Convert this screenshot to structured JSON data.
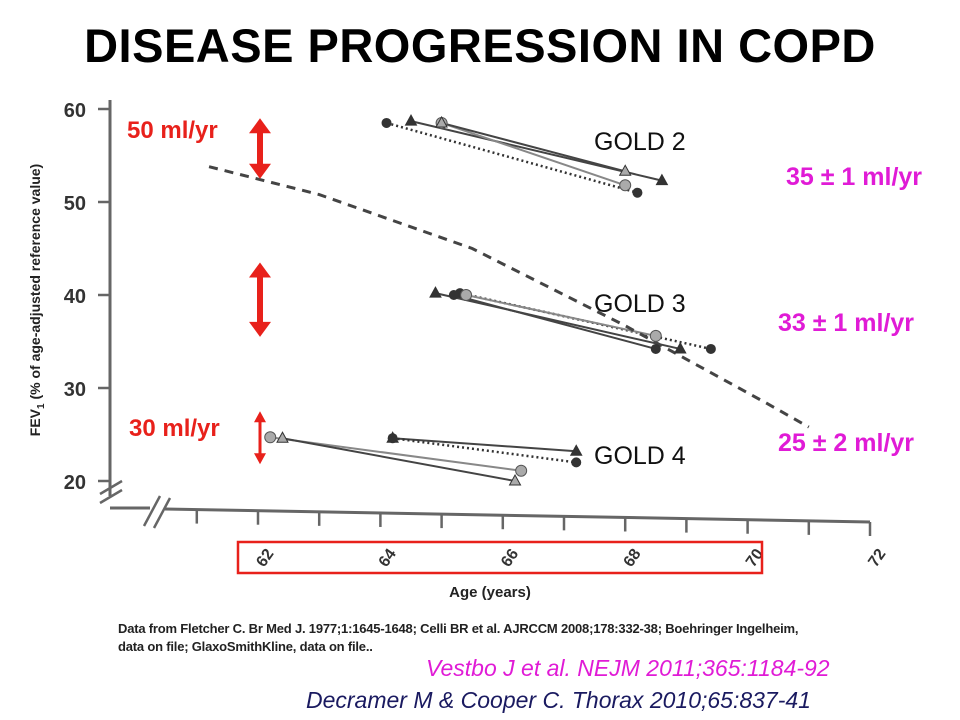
{
  "title": "DISEASE PROGRESSION IN COPD",
  "colors": {
    "arrow": "#e8211b",
    "rate": "#e01bd6",
    "highlight_box": "#e8211b",
    "reference": "#1a1a60"
  },
  "arrows": [
    {
      "label": "50 ml/yr",
      "y_top": 59,
      "y_bottom": 52.5
    },
    {
      "label": "",
      "y_top": 43.5,
      "y_bottom": 35.5
    },
    {
      "label": "30 ml/yr",
      "y_top": 27.5,
      "y_bottom": 21.8
    }
  ],
  "groups": [
    {
      "name": "GOLD 2",
      "rate": "35 ± 1 ml/yr"
    },
    {
      "name": "GOLD 3",
      "rate": "33 ± 1 ml/yr"
    },
    {
      "name": "GOLD 4",
      "rate": "25 ± 2 ml/yr"
    }
  ],
  "data_source": "Data from Fletcher C. Br Med J. 1977;1:1645-1648; Celli BR et al. AJRCCM 2008;178:332-38; Boehringer Ingelheim, data on file; GlaxoSmithKline, data on file..",
  "references": [
    "Vestbo J et al. NEJM 2011;365:1184-92",
    "Decramer M & Cooper C. Thorax 2010;65:837-41"
  ],
  "chart_data": {
    "type": "line",
    "xlabel": "Age (years)",
    "ylabel": "FEV1 (% of age-adjusted reference value)",
    "x_ticks": [
      62,
      64,
      66,
      68,
      70,
      72
    ],
    "y_ticks": [
      20,
      30,
      40,
      50,
      60
    ],
    "xlim": [
      60,
      72
    ],
    "ylim": [
      20,
      60
    ],
    "grid": false,
    "series": [
      {
        "marker": "circle",
        "style": "dotted",
        "x": [
          64.1,
          68.2
        ],
        "y": [
          58.5,
          51
        ]
      },
      {
        "marker": "triangle",
        "style": "solid",
        "x": [
          64.5,
          68.6
        ],
        "y": [
          58.7,
          52.3
        ]
      },
      {
        "marker": "hexagon",
        "style": "solid",
        "x": [
          65.0,
          68.0
        ],
        "y": [
          58.5,
          51.8
        ]
      },
      {
        "marker": "triangle",
        "style": "solid",
        "x": [
          65.0,
          68.0
        ],
        "y": [
          58.5,
          53.3
        ]
      },
      {
        "marker": "triangle",
        "style": "solid",
        "x": [
          64.9,
          68.9
        ],
        "y": [
          40.2,
          34.2
        ]
      },
      {
        "marker": "circle",
        "style": "dotted",
        "x": [
          65.3,
          69.4
        ],
        "y": [
          40.2,
          34.2
        ]
      },
      {
        "marker": "hexagon",
        "style": "solid",
        "x": [
          65.4,
          68.5
        ],
        "y": [
          40.0,
          35.6
        ]
      },
      {
        "marker": "circle",
        "style": "solid",
        "x": [
          65.2,
          68.5
        ],
        "y": [
          40.0,
          34.2
        ]
      },
      {
        "marker": "hexagon",
        "style": "solid",
        "x": [
          62.2,
          66.3
        ],
        "y": [
          24.7,
          21.1
        ]
      },
      {
        "marker": "triangle",
        "style": "solid",
        "x": [
          62.4,
          66.2
        ],
        "y": [
          24.6,
          20.0
        ]
      },
      {
        "marker": "triangle",
        "style": "solid",
        "x": [
          64.2,
          67.2
        ],
        "y": [
          24.6,
          23.2
        ]
      },
      {
        "marker": "circle",
        "style": "dotted",
        "x": [
          64.2,
          67.2
        ],
        "y": [
          24.6,
          22.0
        ]
      },
      {
        "marker": "none",
        "style": "dashed",
        "x": [
          61.2,
          63.0,
          65.5,
          68.0,
          70.3,
          71.0
        ],
        "y": [
          53.8,
          50.8,
          45.0,
          36.7,
          28.4,
          25.8
        ]
      }
    ]
  }
}
